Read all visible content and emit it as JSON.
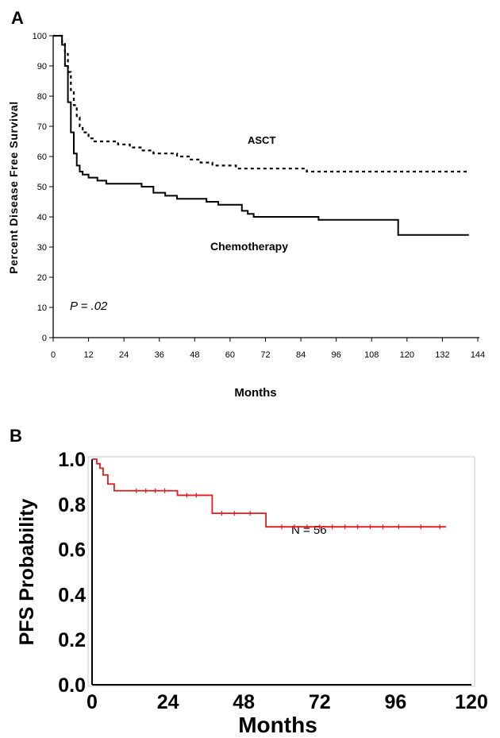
{
  "panels": {
    "a": {
      "label": "A"
    },
    "b": {
      "label": "B"
    }
  },
  "colors": {
    "axis": "#000000",
    "asct_line": "#000000",
    "chemo_line": "#000000",
    "pfs_line": "#e41a1c",
    "panel_b_frame": "#c8c8c8"
  },
  "chart_data": [
    {
      "panel": "A",
      "type": "line",
      "step": true,
      "title": "",
      "xlabel": "Months",
      "ylabel": "Percent Disease Free Survival",
      "xlim": [
        0,
        144
      ],
      "ylim": [
        0,
        100
      ],
      "x_ticks": [
        "0",
        "12",
        "24",
        "36",
        "48",
        "60",
        "72",
        "84",
        "96",
        "108",
        "120",
        "132",
        "144"
      ],
      "y_ticks": [
        "0",
        "10",
        "20",
        "30",
        "40",
        "50",
        "60",
        "70",
        "80",
        "90",
        "100"
      ],
      "grid": false,
      "annotation": {
        "p_prefix": "P",
        "p_value": " = .02"
      },
      "series": [
        {
          "name": "ASCT",
          "style": "dashed",
          "x": [
            0,
            3,
            4,
            5,
            6,
            7,
            8,
            9,
            10,
            12,
            14,
            18,
            22,
            26,
            30,
            34,
            38,
            42,
            46,
            50,
            54,
            58,
            62,
            68,
            74,
            80,
            86,
            95,
            105,
            120,
            141
          ],
          "y": [
            100,
            98,
            94,
            88,
            82,
            77,
            73,
            70,
            68,
            66,
            65,
            65,
            64,
            63,
            62,
            61,
            61,
            60,
            59,
            58,
            57,
            57,
            56,
            56,
            56,
            56,
            55,
            55,
            55,
            55,
            55
          ]
        },
        {
          "name": "Chemotherapy",
          "style": "solid",
          "x": [
            0,
            3,
            4,
            5,
            6,
            7,
            8,
            9,
            10,
            12,
            15,
            18,
            24,
            30,
            34,
            38,
            42,
            48,
            52,
            56,
            60,
            64,
            66,
            68,
            72,
            80,
            90,
            100,
            110,
            117,
            141
          ],
          "y": [
            100,
            97,
            90,
            78,
            68,
            61,
            57,
            55,
            54,
            53,
            52,
            51,
            51,
            50,
            48,
            47,
            46,
            46,
            45,
            44,
            44,
            42,
            41,
            40,
            40,
            40,
            39,
            39,
            39,
            34,
            34
          ]
        }
      ]
    },
    {
      "panel": "B",
      "type": "line",
      "step": true,
      "title": "",
      "xlabel": "Months",
      "ylabel": "PFS Probability",
      "xlim": [
        0,
        120
      ],
      "ylim": [
        0,
        1
      ],
      "x_ticks": [
        "0",
        "24",
        "48",
        "72",
        "96",
        "120"
      ],
      "y_ticks": [
        "0.0",
        "0.2",
        "0.4",
        "0.6",
        "0.8",
        "1.0"
      ],
      "grid": false,
      "annotation": "N = 56",
      "series": [
        {
          "name": "",
          "style": "solid",
          "x": [
            0,
            1.5,
            2.5,
            3.5,
            5,
            7,
            27,
            38,
            55,
            112
          ],
          "y": [
            1.0,
            0.98,
            0.96,
            0.93,
            0.89,
            0.86,
            0.84,
            0.76,
            0.7,
            0.7
          ],
          "censor_marks": [
            14,
            17,
            20,
            23,
            30,
            33,
            41,
            45,
            50,
            60,
            64,
            68,
            72,
            76,
            80,
            84,
            88,
            92,
            97,
            104,
            110
          ]
        }
      ]
    }
  ]
}
